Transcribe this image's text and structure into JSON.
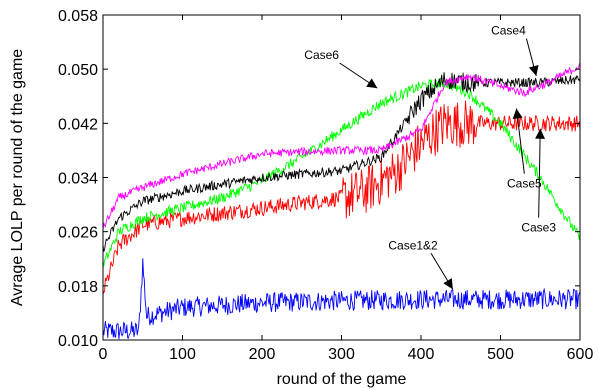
{
  "chart_data": {
    "type": "line",
    "title": "",
    "xlabel": "round of the game",
    "ylabel": "Avrage LOLP per round of the game",
    "xlim": [
      0,
      600
    ],
    "ylim": [
      0.01,
      0.058
    ],
    "xticks": [
      "0",
      "100",
      "200",
      "300",
      "400",
      "500",
      "600"
    ],
    "yticks": [
      "0.010",
      "0.018",
      "0.026",
      "0.034",
      "0.042",
      "0.050",
      "0.058"
    ],
    "grid": false,
    "legend": "none",
    "series": [
      {
        "color": "#0000ff",
        "noise": 0.0015,
        "x": [
          0,
          45,
          50,
          55,
          100,
          200,
          300,
          400,
          500,
          600
        ],
        "y": [
          0.0113,
          0.0113,
          0.0215,
          0.0135,
          0.0148,
          0.0155,
          0.0158,
          0.016,
          0.016,
          0.016
        ]
      },
      {
        "color": "#ff0000",
        "noise": 0.0012,
        "x": [
          0,
          20,
          50,
          100,
          200,
          300,
          330,
          370,
          400,
          430,
          450,
          500,
          600
        ],
        "y": [
          0.017,
          0.024,
          0.027,
          0.028,
          0.0295,
          0.031,
          0.032,
          0.035,
          0.039,
          0.042,
          0.042,
          0.042,
          0.042
        ]
      },
      {
        "color": "#00ff00",
        "noise": 0.0008,
        "x": [
          0,
          20,
          50,
          100,
          150,
          200,
          250,
          300,
          350,
          400,
          430,
          460,
          500,
          550,
          600
        ],
        "y": [
          0.021,
          0.026,
          0.028,
          0.0295,
          0.031,
          0.0335,
          0.037,
          0.041,
          0.045,
          0.0475,
          0.048,
          0.0465,
          0.042,
          0.034,
          0.025
        ]
      },
      {
        "color": "#000000",
        "noise": 0.0007,
        "x": [
          0,
          20,
          50,
          100,
          150,
          200,
          250,
          300,
          350,
          400,
          430,
          460,
          500,
          550,
          600
        ],
        "y": [
          0.0235,
          0.028,
          0.0305,
          0.032,
          0.033,
          0.034,
          0.0345,
          0.035,
          0.037,
          0.0455,
          0.0485,
          0.048,
          0.048,
          0.048,
          0.0485
        ]
      },
      {
        "color": "#ff00ff",
        "noise": 0.0006,
        "x": [
          0,
          20,
          50,
          100,
          150,
          200,
          250,
          300,
          350,
          400,
          430,
          460,
          500,
          530,
          560,
          600
        ],
        "y": [
          0.0265,
          0.031,
          0.0325,
          0.0345,
          0.036,
          0.0375,
          0.0378,
          0.038,
          0.038,
          0.041,
          0.048,
          0.049,
          0.0475,
          0.0465,
          0.048,
          0.0505
        ]
      }
    ],
    "annotations": [
      {
        "text": "Case6",
        "label_x": 275,
        "label_y": 0.0515,
        "target_x": 345,
        "target_y": 0.0472
      },
      {
        "text": "Case4",
        "label_x": 510,
        "label_y": 0.0551,
        "target_x": 545,
        "target_y": 0.049
      },
      {
        "text": "Case5",
        "label_x": 530,
        "label_y": 0.0325,
        "target_x": 520,
        "target_y": 0.0442
      },
      {
        "text": "Case3",
        "label_x": 548,
        "label_y": 0.026,
        "target_x": 550,
        "target_y": 0.0412
      },
      {
        "text": "Case1&2",
        "label_x": 390,
        "label_y": 0.0234,
        "target_x": 440,
        "target_y": 0.0175
      }
    ]
  }
}
